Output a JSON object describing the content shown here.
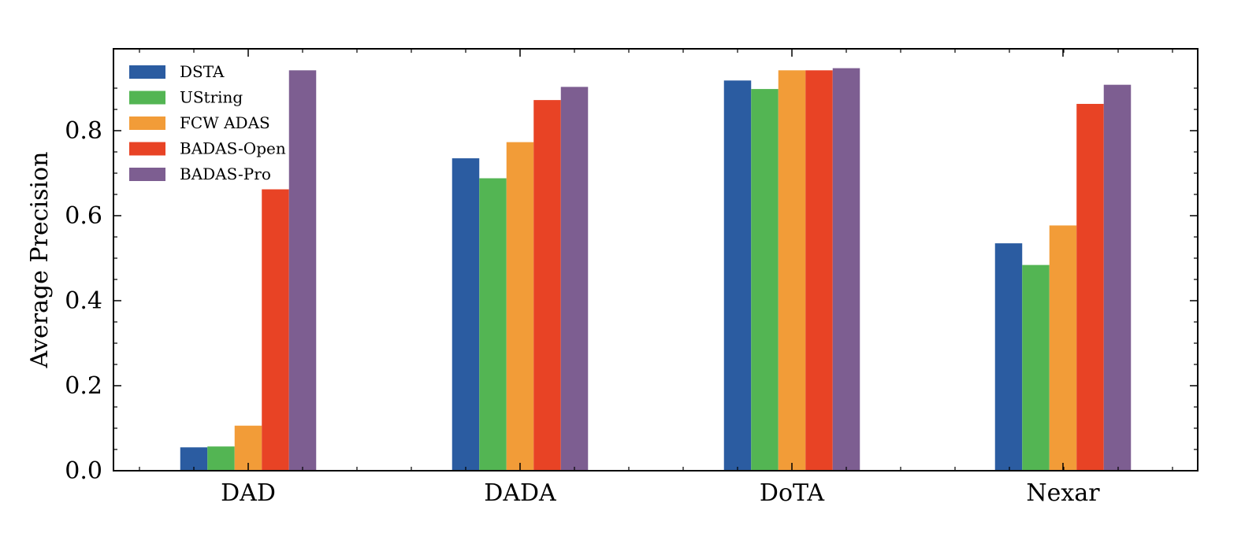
{
  "chart_data": {
    "type": "bar",
    "title": "",
    "xlabel": "",
    "ylabel": "Average Precision",
    "categories": [
      "DAD",
      "DADA",
      "DoTA",
      "Nexar"
    ],
    "ylim": [
      0.0,
      1.0
    ],
    "yticks": [
      "0.0",
      "0.2",
      "0.4",
      "0.6",
      "0.8"
    ],
    "legend_position": "top-left",
    "grid": false,
    "series": [
      {
        "name": "DSTA",
        "color": "#2B5CA1",
        "values": [
          0.055,
          0.735,
          0.918,
          0.535
        ]
      },
      {
        "name": "UString",
        "color": "#53B553",
        "values": [
          0.057,
          0.688,
          0.898,
          0.484
        ]
      },
      {
        "name": "FCW ADAS",
        "color": "#F29C38",
        "values": [
          0.106,
          0.773,
          0.942,
          0.577
        ]
      },
      {
        "name": "BADAS-Open",
        "color": "#E84325",
        "values": [
          0.662,
          0.872,
          0.942,
          0.863
        ]
      },
      {
        "name": "BADAS-Pro",
        "color": "#7D5E91",
        "values": [
          0.942,
          0.903,
          0.947,
          0.908
        ]
      }
    ]
  }
}
